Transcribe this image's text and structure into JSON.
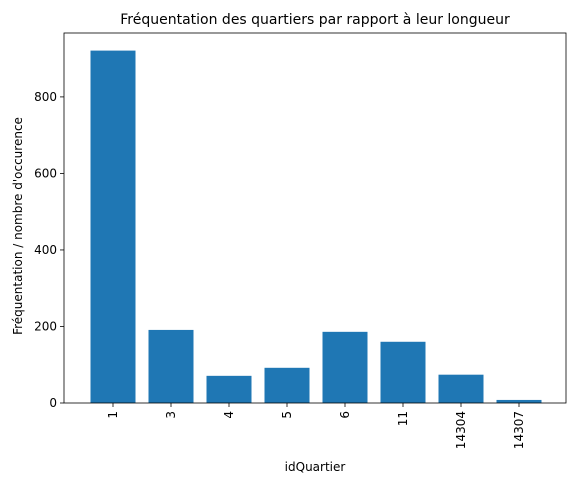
{
  "chart_data": {
    "type": "bar",
    "title": "Fréquentation des quartiers par rapport à leur longueur",
    "xlabel": "idQuartier",
    "ylabel": "Fréquentation / nombre d'occurence",
    "categories": [
      "1",
      "3",
      "4",
      "5",
      "6",
      "11",
      "14304",
      "14307"
    ],
    "values": [
      921,
      191,
      71,
      92,
      186,
      160,
      74,
      8
    ],
    "ylim": [
      0,
      967
    ],
    "yticks": [
      0,
      200,
      400,
      600,
      800
    ],
    "grid": false,
    "bar_color": "#1f77b4",
    "xtick_rotation": 90
  }
}
